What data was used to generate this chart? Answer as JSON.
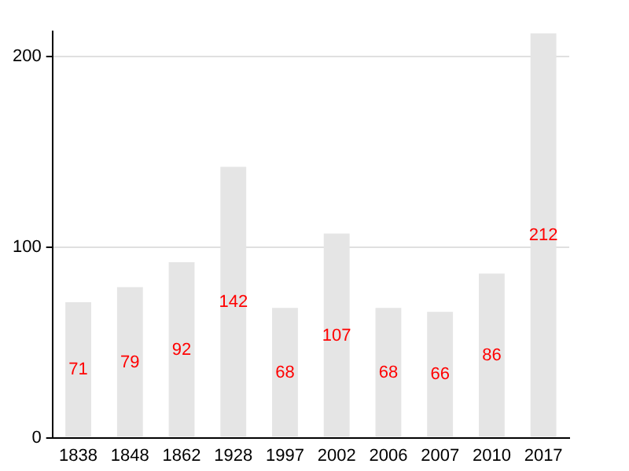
{
  "chart_data": {
    "type": "bar",
    "categories": [
      "1838",
      "1848",
      "1862",
      "1928",
      "1997",
      "2002",
      "2006",
      "2007",
      "2010",
      "2017"
    ],
    "values": [
      71,
      79,
      92,
      142,
      68,
      107,
      68,
      66,
      86,
      212
    ],
    "color": "#e5e5e5",
    "ylim": [
      0,
      213
    ],
    "yticks": [
      0,
      100,
      200
    ],
    "grid": "y",
    "data_labels": true
  }
}
